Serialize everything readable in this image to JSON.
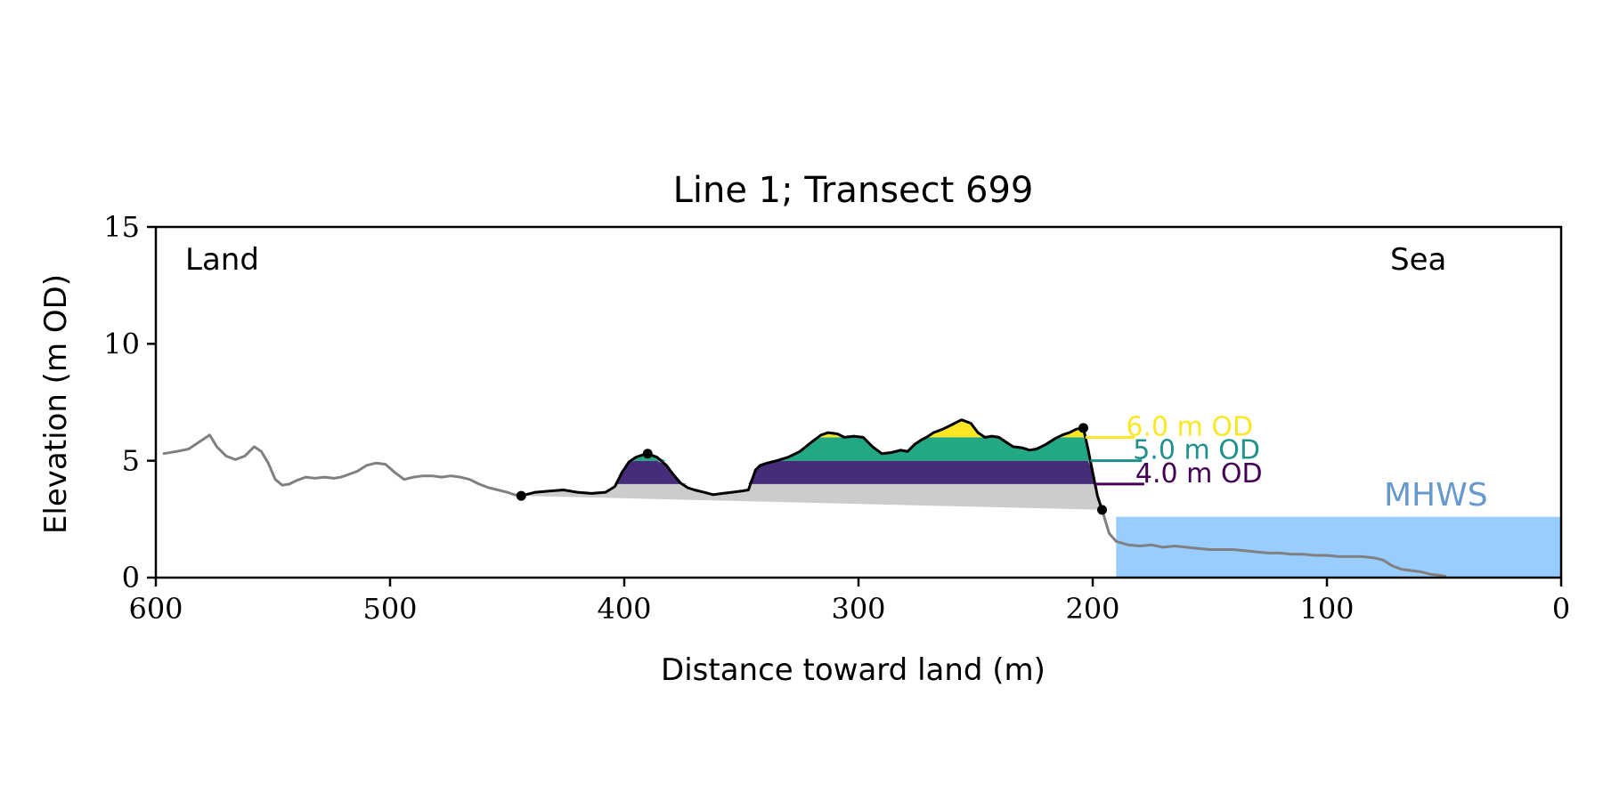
{
  "chart_data": {
    "type": "area",
    "title": "Line 1; Transect 699",
    "xlabel": "Distance toward land (m)",
    "ylabel": "Elevation (m OD)",
    "xlim": [
      600,
      0
    ],
    "ylim": [
      0,
      15
    ],
    "x_ticks": [
      600,
      500,
      400,
      300,
      200,
      100,
      0
    ],
    "y_ticks": [
      0,
      5,
      10,
      15
    ],
    "grid": false,
    "annotations": {
      "land": "Land",
      "sea": "Sea",
      "mhws": "MHWS"
    },
    "mhws": {
      "level": 2.6,
      "x_from": 190,
      "x_to": 0,
      "color": "#99ccff",
      "label_color": "#6699cc"
    },
    "levels": [
      {
        "value": 6.0,
        "label": "6.0 m OD",
        "color": "#fde725",
        "label_x": 182
      },
      {
        "value": 5.0,
        "label": "5.0 m OD",
        "color": "#21918c",
        "label_x": 179
      },
      {
        "value": 4.0,
        "label": "4.0 m OD",
        "color": "#440154",
        "label_x": 178
      }
    ],
    "colors": {
      "full_profile": "#808080",
      "dune_profile": "#000000",
      "dune_fill": "#cccccc",
      "band_6_5": "#22a884",
      "band_5_4": "#472c7a",
      "band_above_6": "#fde725"
    },
    "dune_baseline": {
      "x_start": 444,
      "y_start": 3.5,
      "x_end": 196,
      "y_end": 2.9
    },
    "key_points": [
      {
        "x": 444,
        "y": 3.5
      },
      {
        "x": 390,
        "y": 5.3
      },
      {
        "x": 204,
        "y": 6.4
      },
      {
        "x": 196,
        "y": 2.9
      }
    ],
    "series": [
      {
        "x": [
          597,
          591,
          586,
          580,
          577,
          574,
          570,
          566,
          562,
          558,
          555,
          552,
          549,
          546,
          543,
          540,
          536,
          532,
          528,
          524,
          521,
          518,
          514,
          510,
          506,
          502,
          498,
          494,
          490,
          486,
          482,
          478,
          474,
          470,
          466,
          462,
          458,
          454,
          450,
          447,
          444
        ],
        "y": [
          5.3,
          5.4,
          5.5,
          5.9,
          6.1,
          5.6,
          5.2,
          5.05,
          5.2,
          5.6,
          5.4,
          4.9,
          4.2,
          3.95,
          4.0,
          4.15,
          4.3,
          4.25,
          4.3,
          4.25,
          4.3,
          4.4,
          4.55,
          4.8,
          4.9,
          4.85,
          4.5,
          4.2,
          4.3,
          4.35,
          4.35,
          4.3,
          4.35,
          4.3,
          4.2,
          4.0,
          3.85,
          3.75,
          3.65,
          3.55,
          3.5
        ]
      },
      {
        "x": [
          444,
          438,
          432,
          426,
          420,
          414,
          408,
          404,
          401,
          398,
          395,
          392,
          390,
          386,
          382,
          379,
          376,
          373,
          370,
          366,
          362,
          358,
          354,
          350,
          347,
          344,
          342,
          339,
          335,
          330,
          325,
          320,
          316,
          313,
          309,
          306,
          302,
          298,
          294,
          290,
          286,
          282,
          279,
          276,
          273,
          271,
          268,
          264,
          260,
          256,
          252,
          249,
          246,
          243,
          240,
          237,
          234,
          230,
          227,
          224,
          220,
          216,
          213,
          210,
          207,
          204
        ],
        "y": [
          3.5,
          3.65,
          3.7,
          3.75,
          3.65,
          3.6,
          3.65,
          3.9,
          4.5,
          4.95,
          5.15,
          5.25,
          5.3,
          5.15,
          4.8,
          4.4,
          4.05,
          3.85,
          3.75,
          3.65,
          3.55,
          3.6,
          3.65,
          3.7,
          3.75,
          4.6,
          4.8,
          4.9,
          5.0,
          5.15,
          5.4,
          5.8,
          6.1,
          6.2,
          6.15,
          6.0,
          6.05,
          6.0,
          5.6,
          5.3,
          5.35,
          5.45,
          5.4,
          5.7,
          5.9,
          6.0,
          6.2,
          6.35,
          6.55,
          6.75,
          6.6,
          6.2,
          6.0,
          6.05,
          6.0,
          5.8,
          5.6,
          5.55,
          5.45,
          5.5,
          5.7,
          5.95,
          6.1,
          6.2,
          6.35,
          6.4
        ]
      },
      {
        "x": [
          204,
          202,
          200,
          198,
          196
        ],
        "y": [
          6.4,
          5.5,
          4.5,
          3.5,
          2.9
        ]
      },
      {
        "x": [
          196,
          193,
          190,
          185,
          180,
          175,
          170,
          165,
          160,
          155,
          150,
          145,
          140,
          135,
          130,
          125,
          120,
          115,
          110,
          105,
          100,
          95,
          90,
          85,
          80,
          76,
          72,
          68,
          64,
          60,
          56,
          52,
          49
        ],
        "y": [
          2.9,
          1.9,
          1.55,
          1.4,
          1.35,
          1.4,
          1.3,
          1.35,
          1.3,
          1.25,
          1.2,
          1.2,
          1.2,
          1.15,
          1.1,
          1.05,
          1.05,
          1.0,
          1.0,
          0.95,
          0.95,
          0.9,
          0.9,
          0.9,
          0.85,
          0.75,
          0.5,
          0.35,
          0.3,
          0.25,
          0.15,
          0.1,
          0.05
        ]
      }
    ]
  }
}
